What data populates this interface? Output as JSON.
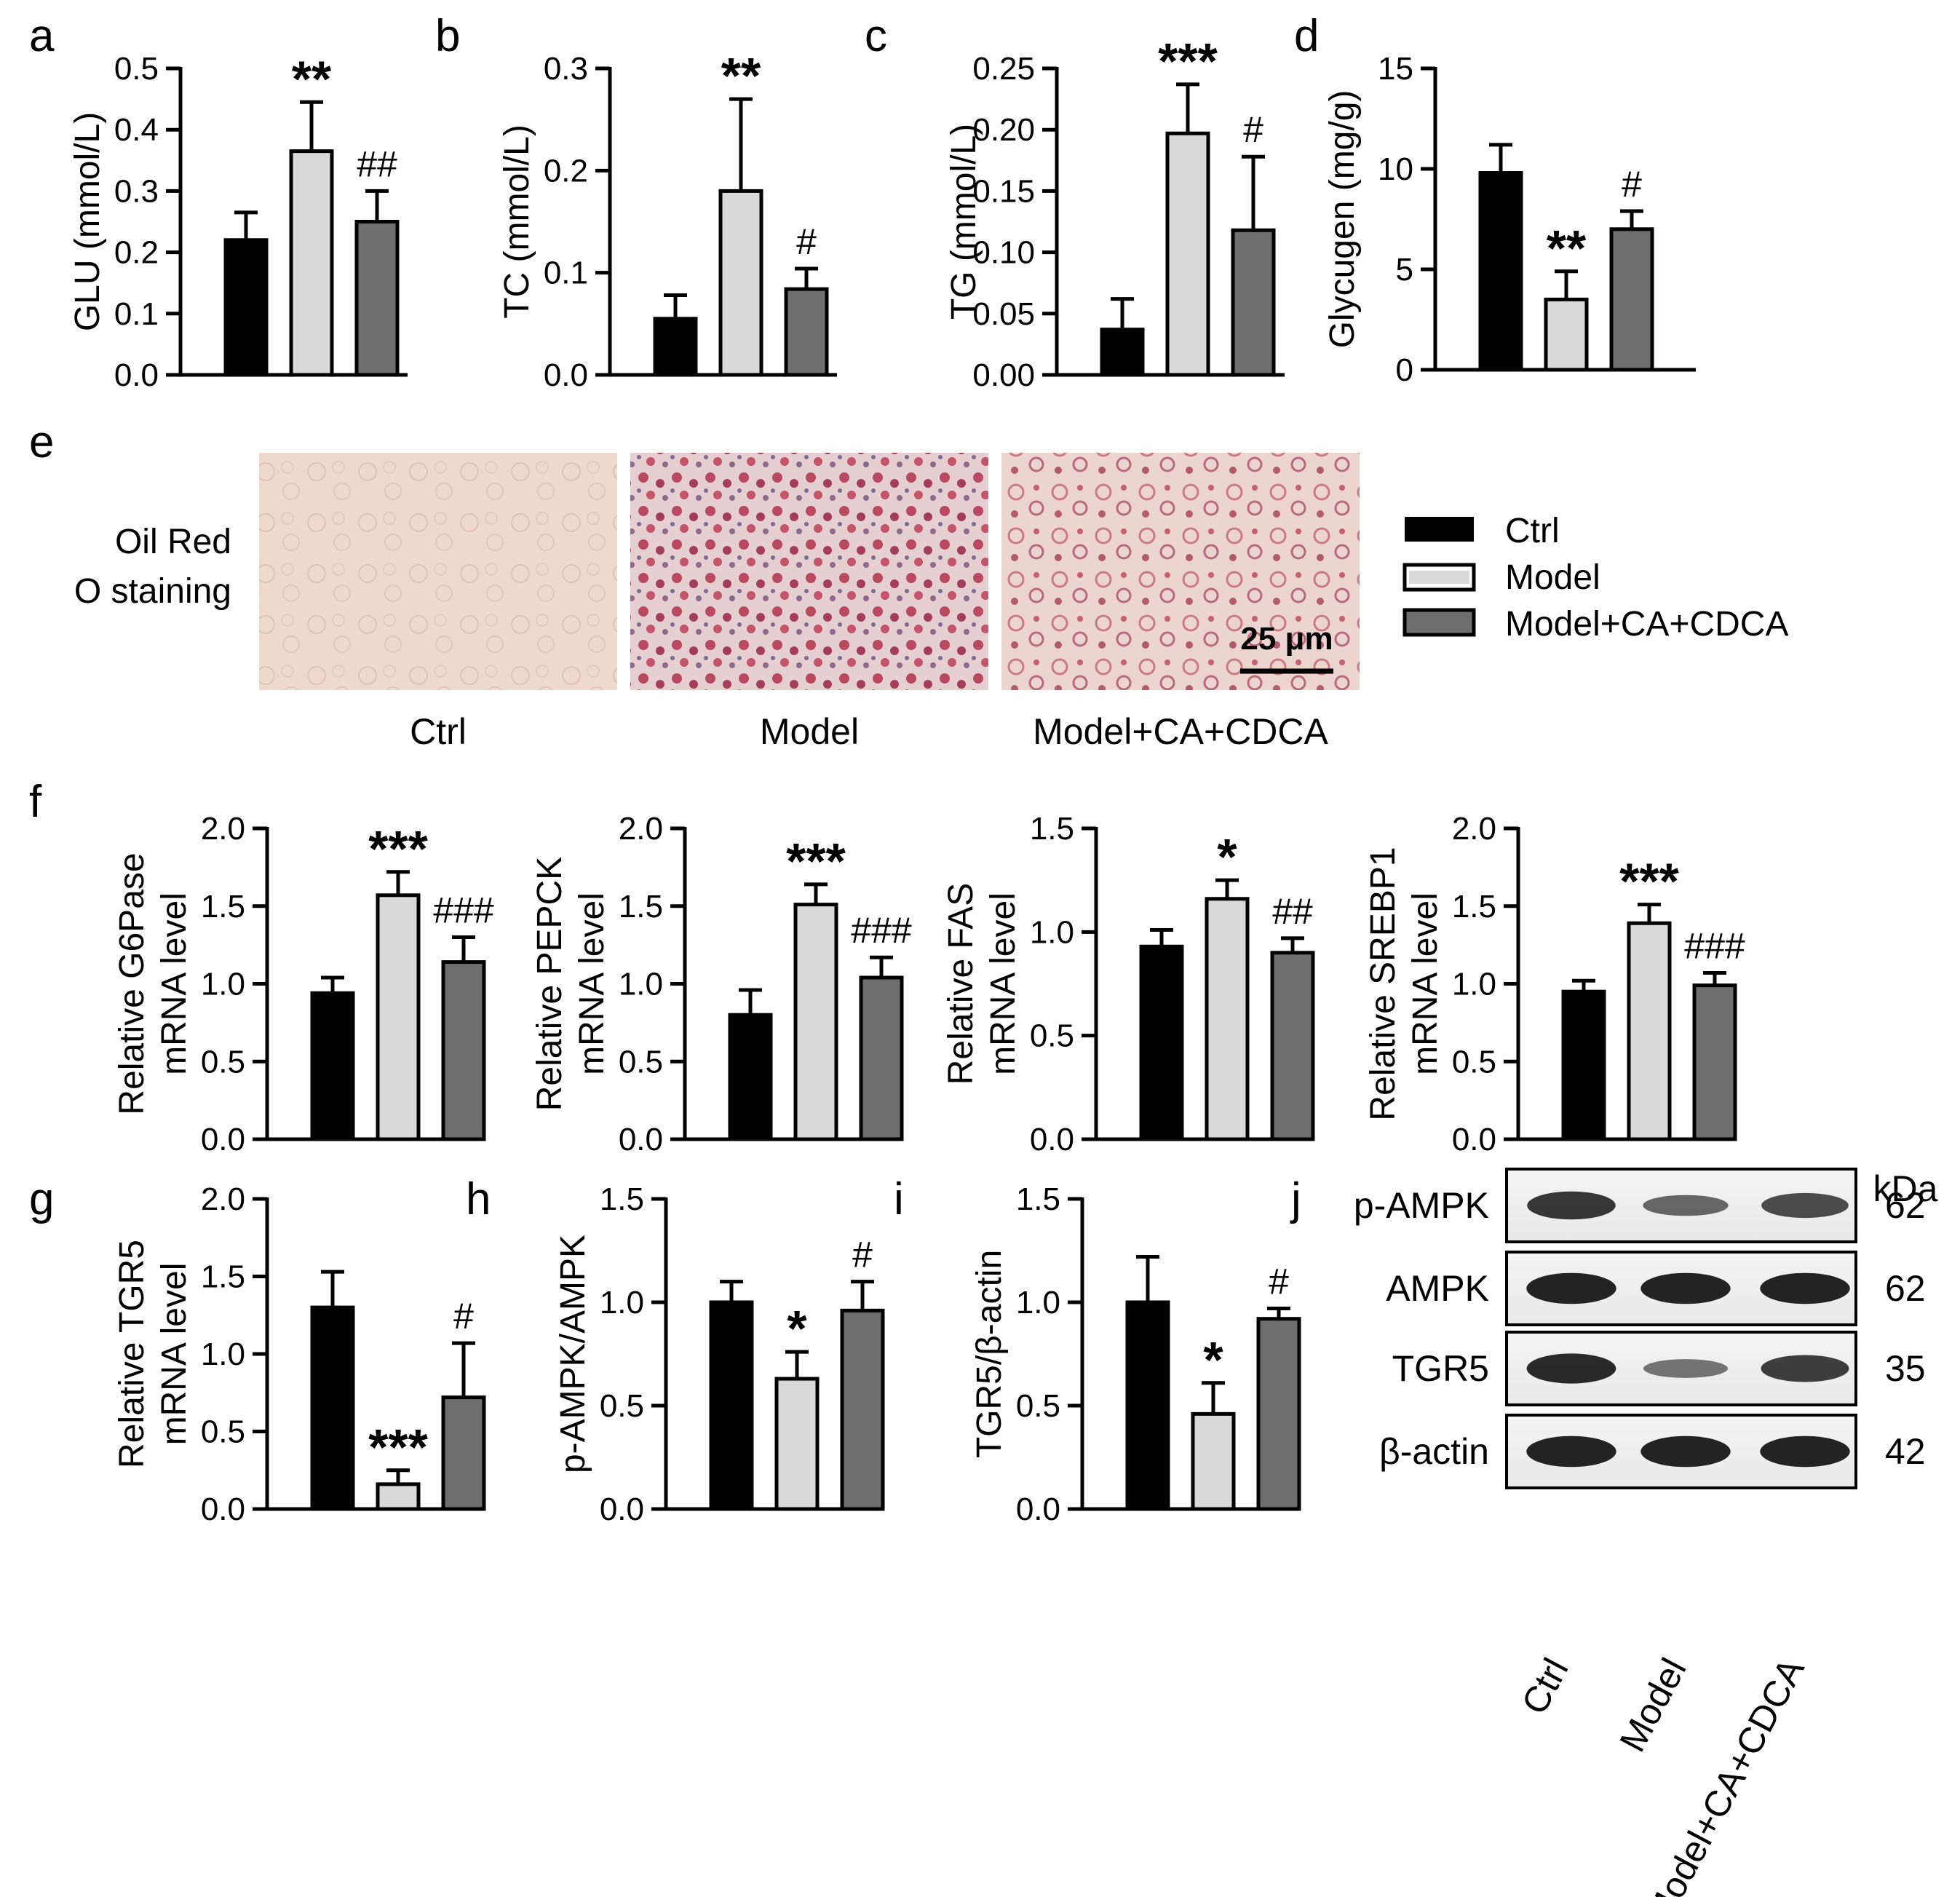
{
  "groups": [
    "Ctrl",
    "Model",
    "Model+CA+CDCA"
  ],
  "colors": {
    "Ctrl": "#000000",
    "Model": "#d9d9d9",
    "Model+CA+CDCA": "#6e6e6e"
  },
  "chart_data": [
    {
      "id": "a",
      "panel": "a",
      "type": "bar",
      "categories": [
        "Ctrl",
        "Model",
        "Model+CA+CDCA"
      ],
      "values": [
        0.22,
        0.365,
        0.25
      ],
      "errors": [
        0.045,
        0.08,
        0.05
      ],
      "ylabel": "GLU (mmol/L)",
      "ylim": [
        0,
        0.5
      ],
      "yticks": [
        "0.0",
        "0.1",
        "0.2",
        "0.3",
        "0.4",
        "0.5"
      ],
      "annotations": [
        "",
        "**",
        "##"
      ]
    },
    {
      "id": "b",
      "panel": "b",
      "type": "bar",
      "categories": [
        "Ctrl",
        "Model",
        "Model+CA+CDCA"
      ],
      "values": [
        0.055,
        0.18,
        0.084
      ],
      "errors": [
        0.023,
        0.09,
        0.02
      ],
      "ylabel": "TC (mmol/L)",
      "ylim": [
        0,
        0.3
      ],
      "yticks": [
        "0.0",
        "0.1",
        "0.2",
        "0.3"
      ],
      "annotations": [
        "",
        "**",
        "#"
      ]
    },
    {
      "id": "c",
      "panel": "c",
      "type": "bar",
      "categories": [
        "Ctrl",
        "Model",
        "Model+CA+CDCA"
      ],
      "values": [
        0.037,
        0.197,
        0.118
      ],
      "errors": [
        0.025,
        0.04,
        0.06
      ],
      "ylabel": "TG (mmol/L)",
      "ylim": [
        0,
        0.25
      ],
      "yticks": [
        "0.00",
        "0.05",
        "0.10",
        "0.15",
        "0.20",
        "0.25"
      ],
      "annotations": [
        "",
        "***",
        "#"
      ]
    },
    {
      "id": "d",
      "panel": "d",
      "type": "bar",
      "categories": [
        "Ctrl",
        "Model",
        "Model+CA+CDCA"
      ],
      "values": [
        9.8,
        3.5,
        7.0
      ],
      "errors": [
        1.4,
        1.4,
        0.9
      ],
      "ylabel": "Glycugen (mg/g)",
      "ylim": [
        0,
        15
      ],
      "yticks": [
        "0",
        "5",
        "10",
        "15"
      ],
      "annotations": [
        "",
        "**",
        "#"
      ]
    },
    {
      "id": "f1",
      "panel": "f",
      "type": "bar",
      "categories": [
        "Ctrl",
        "Model",
        "Model+CA+CDCA"
      ],
      "values": [
        0.94,
        1.57,
        1.14
      ],
      "errors": [
        0.1,
        0.15,
        0.16
      ],
      "ylabel": [
        "Relative G6Pase",
        "mRNA level"
      ],
      "ylim": [
        0,
        2.0
      ],
      "yticks": [
        "0.0",
        "0.5",
        "1.0",
        "1.5",
        "2.0"
      ],
      "annotations": [
        "",
        "***",
        "###"
      ]
    },
    {
      "id": "f2",
      "panel": "",
      "type": "bar",
      "categories": [
        "Ctrl",
        "Model",
        "Model+CA+CDCA"
      ],
      "values": [
        0.8,
        1.51,
        1.04
      ],
      "errors": [
        0.16,
        0.13,
        0.13
      ],
      "ylabel": [
        "Relative PEPCK",
        "mRNA level"
      ],
      "ylim": [
        0,
        2.0
      ],
      "yticks": [
        "0.0",
        "0.5",
        "1.0",
        "1.5",
        "2.0"
      ],
      "annotations": [
        "",
        "***",
        "###"
      ]
    },
    {
      "id": "f3",
      "panel": "",
      "type": "bar",
      "categories": [
        "Ctrl",
        "Model",
        "Model+CA+CDCA"
      ],
      "values": [
        0.93,
        1.16,
        0.9
      ],
      "errors": [
        0.08,
        0.09,
        0.07
      ],
      "ylabel": [
        "Relative FAS",
        "mRNA level"
      ],
      "ylim": [
        0,
        1.5
      ],
      "yticks": [
        "0.0",
        "0.5",
        "1.0",
        "1.5"
      ],
      "annotations": [
        "",
        "*",
        "##"
      ]
    },
    {
      "id": "f4",
      "panel": "",
      "type": "bar",
      "categories": [
        "Ctrl",
        "Model",
        "Model+CA+CDCA"
      ],
      "values": [
        0.95,
        1.39,
        0.99
      ],
      "errors": [
        0.07,
        0.12,
        0.08
      ],
      "ylabel": [
        "Relative SREBP1",
        "mRNA level"
      ],
      "ylim": [
        0,
        2.0
      ],
      "yticks": [
        "0.0",
        "0.5",
        "1.0",
        "1.5",
        "2.0"
      ],
      "annotations": [
        "",
        "***",
        "###"
      ]
    },
    {
      "id": "g",
      "panel": "g",
      "type": "bar",
      "categories": [
        "Ctrl",
        "Model",
        "Model+CA+CDCA"
      ],
      "values": [
        1.3,
        0.16,
        0.72
      ],
      "errors": [
        0.23,
        0.09,
        0.35
      ],
      "ylabel": [
        "Relative TGR5",
        "mRNA level"
      ],
      "ylim": [
        0,
        2.0
      ],
      "yticks": [
        "0.0",
        "0.5",
        "1.0",
        "1.5",
        "2.0"
      ],
      "annotations": [
        "",
        "***",
        "#"
      ]
    },
    {
      "id": "h",
      "panel": "h",
      "type": "bar",
      "categories": [
        "Ctrl",
        "Model",
        "Model+CA+CDCA"
      ],
      "values": [
        1.0,
        0.63,
        0.96
      ],
      "errors": [
        0.1,
        0.13,
        0.14
      ],
      "ylabel": "p-AMPK/AMPK",
      "ylim": [
        0,
        1.5
      ],
      "yticks": [
        "0.0",
        "0.5",
        "1.0",
        "1.5"
      ],
      "annotations": [
        "",
        "*",
        "#"
      ]
    },
    {
      "id": "i",
      "panel": "i",
      "type": "bar",
      "categories": [
        "Ctrl",
        "Model",
        "Model+CA+CDCA"
      ],
      "values": [
        1.0,
        0.46,
        0.92
      ],
      "errors": [
        0.22,
        0.15,
        0.05
      ],
      "ylabel": "TGR5/β-actin",
      "ylim": [
        0,
        1.5
      ],
      "yticks": [
        "0.0",
        "0.5",
        "1.0",
        "1.5"
      ],
      "annotations": [
        "",
        "*",
        "#"
      ]
    }
  ],
  "panel_e": {
    "letter": "e",
    "row_label": [
      "Oil Red",
      "O staining"
    ],
    "captions": [
      "Ctrl",
      "Model",
      "Model+CA+CDCA"
    ],
    "scale_bar": "25 μm"
  },
  "legend": [
    "Ctrl",
    "Model",
    "Model+CA+CDCA"
  ],
  "panel_j": {
    "letter": "j",
    "unit": "kDa",
    "bands": [
      {
        "label": "p-AMPK",
        "kda": "62",
        "intensity": [
          0.8,
          0.45,
          0.65
        ]
      },
      {
        "label": "AMPK",
        "kda": "62",
        "intensity": [
          0.95,
          0.95,
          0.95
        ]
      },
      {
        "label": "TGR5",
        "kda": "35",
        "intensity": [
          0.9,
          0.35,
          0.75
        ]
      },
      {
        "label": "β-actin",
        "kda": "42",
        "intensity": [
          0.95,
          0.95,
          0.95
        ]
      }
    ],
    "lanes": [
      "Ctrl",
      "Model",
      "Model+CA+CDCA"
    ]
  }
}
